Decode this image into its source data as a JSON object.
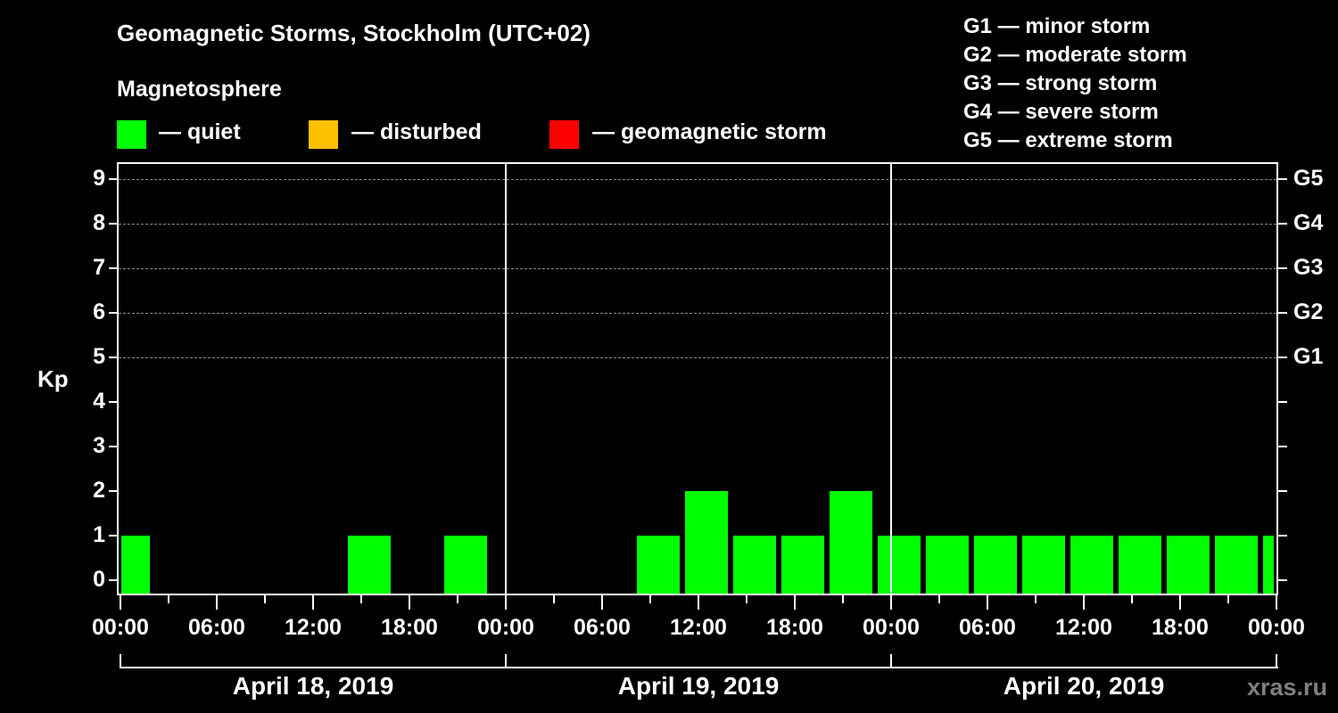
{
  "header": {
    "title": "Geomagnetic Storms, Stockholm (UTC+02)",
    "subtitle": "Magnetosphere"
  },
  "legend": [
    {
      "label": "— quiet",
      "color": "#00ff00"
    },
    {
      "label": "— disturbed",
      "color": "#ffc000"
    },
    {
      "label": "— geomagnetic storm",
      "color": "#ff0000"
    }
  ],
  "g_scale": [
    "G1 — minor storm",
    "G2 — moderate storm",
    "G3 — strong storm",
    "G4 — severe storm",
    "G5 — extreme storm"
  ],
  "axis": {
    "ylabel": "Kp",
    "yticks": [
      "0",
      "1",
      "2",
      "3",
      "4",
      "5",
      "6",
      "7",
      "8",
      "9"
    ],
    "right_ticks": [
      {
        "kp": 5,
        "label": "G1"
      },
      {
        "kp": 6,
        "label": "G2"
      },
      {
        "kp": 7,
        "label": "G3"
      },
      {
        "kp": 8,
        "label": "G4"
      },
      {
        "kp": 9,
        "label": "G5"
      }
    ],
    "xticks": [
      "00:00",
      "06:00",
      "12:00",
      "18:00",
      "00:00",
      "06:00",
      "12:00",
      "18:00",
      "00:00",
      "06:00",
      "12:00",
      "18:00",
      "00:00"
    ],
    "days": [
      "April 18, 2019",
      "April 19, 2019",
      "April 20, 2019"
    ]
  },
  "credit": "xras.ru",
  "chart_data": {
    "type": "bar",
    "title": "Geomagnetic Storms, Stockholm (UTC+02)",
    "xlabel": "",
    "ylabel": "Kp",
    "ylim": [
      0,
      9
    ],
    "grid": "dashed horizontal at Kp 5-9",
    "slot_hours": 3,
    "first_slot_start_local_hour": -1,
    "categories": [
      "Apr 17 23:00",
      "Apr 18 02:00",
      "Apr 18 05:00",
      "Apr 18 08:00",
      "Apr 18 11:00",
      "Apr 18 14:00",
      "Apr 18 17:00",
      "Apr 18 20:00",
      "Apr 18 23:00",
      "Apr 19 02:00",
      "Apr 19 05:00",
      "Apr 19 08:00",
      "Apr 19 11:00",
      "Apr 19 14:00",
      "Apr 19 17:00",
      "Apr 19 20:00",
      "Apr 19 23:00",
      "Apr 20 02:00",
      "Apr 20 05:00",
      "Apr 20 08:00",
      "Apr 20 11:00",
      "Apr 20 14:00",
      "Apr 20 17:00",
      "Apr 20 20:00",
      "Apr 20 23:00"
    ],
    "values": [
      1,
      0,
      0,
      0,
      0,
      1,
      0,
      1,
      0,
      0,
      0,
      1,
      2,
      1,
      1,
      2,
      1,
      1,
      1,
      1,
      1,
      1,
      1,
      1,
      1
    ],
    "color_rule": {
      "quiet": "#00ff00",
      "disturbed": "#ffc000",
      "storm": "#ff0000"
    }
  }
}
